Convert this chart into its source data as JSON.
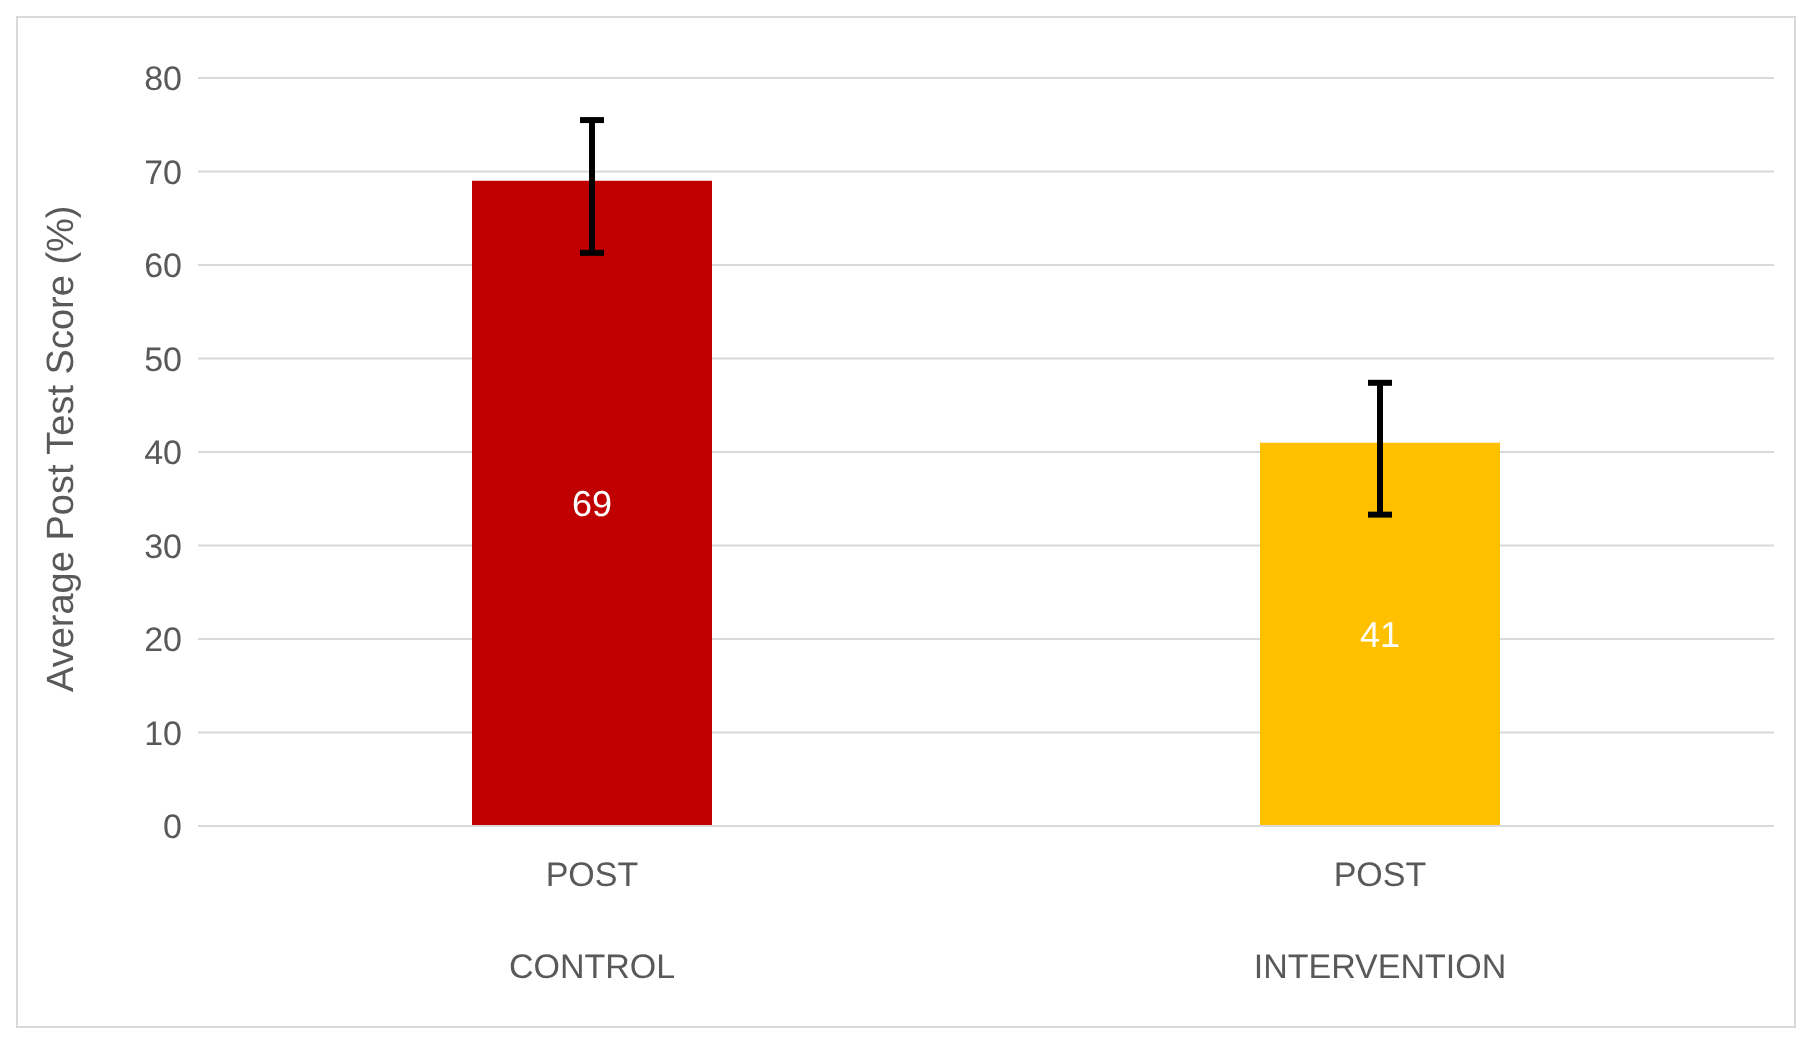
{
  "chart_data": {
    "type": "bar",
    "ylabel": "Average Post Test Score (%)",
    "categories": [
      "POST\nCONTROL",
      "POST\nINTERVENTION"
    ],
    "values": [
      69,
      41
    ],
    "colors": [
      "#c00000",
      "#ffc000"
    ],
    "errors": [
      [
        61.3,
        75.5
      ],
      [
        33.3,
        47.4
      ]
    ],
    "data_labels": true,
    "ylim": [
      0,
      80
    ],
    "yticks": [
      0,
      10,
      20,
      30,
      40,
      50,
      60,
      70,
      80
    ],
    "grid": "y"
  }
}
